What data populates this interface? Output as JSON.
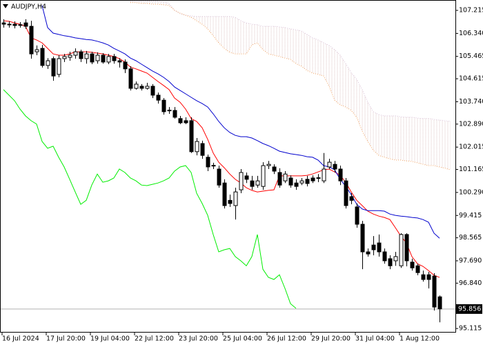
{
  "chart_data": {
    "type": "candlestick",
    "title": "AUDJPY,H4",
    "categories": [
      "16 Jul 2024",
      null,
      null,
      null,
      null,
      null,
      null,
      null,
      "17 Jul 20:00",
      null,
      null,
      null,
      null,
      null,
      null,
      null,
      "19 Jul 04:00",
      null,
      null,
      null,
      null,
      null,
      null,
      null,
      "22 Jul 12:00",
      null,
      null,
      null,
      null,
      null,
      null,
      null,
      "23 Jul 20:00",
      null,
      null,
      null,
      null,
      null,
      null,
      null,
      "25 Jul 04:00",
      null,
      null,
      null,
      null,
      null,
      null,
      null,
      "26 Jul 12:00",
      null,
      null,
      null,
      null,
      null,
      null,
      null,
      "29 Jul 20:00",
      null,
      null,
      null,
      null,
      null,
      null,
      null,
      "31 Jul 04:00",
      null,
      null,
      null,
      null,
      null,
      null,
      null,
      "1 Aug 12:00",
      null,
      null,
      null,
      null,
      null,
      null,
      null,
      null,
      null
    ],
    "ylim": [
      94.96,
      107.61
    ],
    "yticks": [
      107.215,
      {
        "value": 106.34,
        "label": "106.340"
      },
      105.465,
      104.615,
      {
        "value": 103.74,
        "label": "103.740"
      },
      {
        "value": 102.89,
        "label": "102.890"
      },
      102.015,
      101.165,
      {
        "value": 100.29,
        "label": "100.290"
      },
      99.415,
      98.565,
      {
        "value": 97.69,
        "label": "97.690"
      },
      {
        "value": 96.84,
        "label": "96.840"
      },
      95.115
    ],
    "last_price": 95.856,
    "up_color": "#ffffff",
    "down_color": "#000000",
    "open": [
      106.74,
      106.69,
      106.69,
      106.67,
      106.74,
      106.61,
      105.64,
      105.77,
      105.12,
      105.38,
      104.78,
      105.38,
      105.43,
      105.51,
      105.64,
      105.38,
      105.56,
      105.3,
      105.51,
      105.25,
      105.46,
      105.3,
      105.25,
      104.99,
      104.25,
      104.33,
      104.25,
      104.33,
      103.99,
      103.8,
      103.42,
      103.41,
      103.1,
      103.02,
      103.02,
      101.84,
      102.15,
      101.63,
      101.32,
      101.18,
      100.65,
      99.99,
      99.79,
      100.39,
      100.92,
      100.73,
      100.57,
      100.52,
      101.31,
      101.26,
      101.05,
      100.73,
      100.84,
      100.65,
      100.65,
      100.79,
      100.84,
      100.85,
      100.73,
      101.26,
      101.36,
      101.18,
      100.73,
      100.13,
      99.74,
      99.08,
      98.03,
      98.29,
      98.37,
      98.03,
      97.77,
      97.69,
      97.5,
      98.69,
      97.64,
      97.5,
      97.16,
      97.16,
      97.11,
      96.32,
      null,
      null
    ],
    "high": [
      106.88,
      106.8,
      106.8,
      106.77,
      106.88,
      106.82,
      105.88,
      105.9,
      105.4,
      105.46,
      105.51,
      105.56,
      105.64,
      105.77,
      105.72,
      105.67,
      105.64,
      105.62,
      105.59,
      105.56,
      105.56,
      105.4,
      105.35,
      105.09,
      104.51,
      104.41,
      104.46,
      104.41,
      104.09,
      103.88,
      103.54,
      103.54,
      103.2,
      103.15,
      103.15,
      102.36,
      102.26,
      101.73,
      101.42,
      101.31,
      100.79,
      100.21,
      100.47,
      101.18,
      101.05,
      100.92,
      100.92,
      101.44,
      101.49,
      101.36,
      101.21,
      101.1,
      100.94,
      100.79,
      100.84,
      100.92,
      100.94,
      100.99,
      101.79,
      101.57,
      101.49,
      101.31,
      100.84,
      100.26,
      99.87,
      99.21,
      98.16,
      98.63,
      98.69,
      98.16,
      97.9,
      98.03,
      98.74,
      98.74,
      97.77,
      97.58,
      97.32,
      97.27,
      97.22,
      96.37,
      null,
      null
    ],
    "low": [
      106.56,
      106.56,
      106.53,
      106.56,
      106.51,
      105.38,
      105.51,
      105.04,
      104.99,
      104.54,
      104.67,
      105.25,
      105.3,
      105.38,
      105.25,
      105.19,
      105.17,
      105.19,
      105.19,
      105.17,
      105.19,
      105.04,
      104.83,
      104.17,
      104.2,
      104.17,
      104.2,
      103.88,
      103.67,
      103.25,
      103.28,
      103.1,
      102.89,
      102.89,
      101.79,
      101.7,
      101.57,
      101.1,
      101.18,
      100.47,
      99.68,
      99.74,
      99.26,
      100.26,
      100.65,
      100.39,
      100.47,
      100.39,
      101.18,
      100.99,
      100.47,
      100.65,
      100.47,
      100.39,
      100.57,
      100.52,
      100.65,
      100.68,
      100.65,
      101.18,
      101.05,
      100.57,
      99.68,
      99.84,
      98.95,
      97.37,
      97.85,
      97.9,
      97.85,
      97.58,
      97.37,
      97.5,
      97.42,
      97.48,
      97.32,
      97.14,
      96.9,
      96.64,
      95.8,
      95.35,
      null,
      null
    ],
    "close": [
      106.69,
      106.67,
      106.64,
      106.66,
      106.61,
      105.56,
      105.72,
      105.12,
      105.3,
      104.72,
      105.38,
      105.46,
      105.51,
      105.64,
      105.38,
      105.56,
      105.25,
      105.51,
      105.25,
      105.46,
      105.3,
      105.25,
      104.99,
      104.25,
      104.41,
      104.25,
      104.33,
      103.99,
      103.8,
      103.36,
      103.41,
      103.15,
      102.94,
      102.94,
      101.84,
      102.23,
      101.7,
      101.26,
      101.31,
      100.57,
      99.79,
      99.87,
      100.31,
      101.05,
      100.79,
      100.52,
      100.73,
      101.31,
      101.36,
      101.1,
      100.57,
      100.99,
      100.57,
      100.52,
      100.73,
      100.63,
      100.73,
      100.84,
      101.18,
      101.44,
      101.18,
      100.73,
      99.79,
      99.99,
      99.08,
      98.03,
      97.95,
      98.11,
      98.03,
      97.69,
      97.5,
      97.85,
      98.69,
      97.69,
      97.42,
      97.24,
      96.98,
      96.98,
      95.93,
      95.86,
      null,
      null
    ],
    "cloud": {
      "color": "#dcc4c4",
      "upper": {
        "color": "#d8bfd8",
        "style": "dotted",
        "values": [
          null,
          null,
          null,
          null,
          null,
          null,
          null,
          null,
          null,
          null,
          null,
          null,
          null,
          null,
          null,
          null,
          null,
          null,
          null,
          null,
          null,
          null,
          null,
          107.56,
          107.56,
          107.56,
          107.56,
          107.56,
          107.56,
          107.53,
          107.48,
          107.22,
          107.09,
          107.03,
          107.01,
          106.98,
          106.98,
          106.98,
          106.98,
          106.98,
          106.98,
          106.98,
          106.95,
          106.82,
          106.74,
          106.69,
          106.67,
          106.61,
          106.61,
          106.61,
          106.59,
          106.56,
          106.51,
          106.48,
          106.43,
          106.3,
          106.17,
          106.09,
          105.98,
          105.88,
          105.72,
          105.51,
          105.19,
          104.85,
          104.59,
          104.2,
          103.72,
          103.36,
          103.25,
          103.2,
          103.2,
          103.2,
          103.17,
          103.15,
          103.15,
          103.12,
          103.1,
          103.1,
          103.07,
          103.04,
          103.02,
          102.99
        ]
      },
      "lower": {
        "color": "#f4a460",
        "style": "dotted",
        "values": [
          null,
          null,
          null,
          null,
          null,
          null,
          null,
          null,
          null,
          null,
          null,
          null,
          null,
          null,
          null,
          null,
          null,
          null,
          null,
          null,
          null,
          null,
          null,
          107.51,
          107.51,
          107.48,
          107.48,
          107.45,
          107.45,
          107.43,
          107.4,
          107.22,
          107.11,
          107.03,
          106.95,
          106.82,
          106.69,
          106.51,
          106.25,
          105.98,
          105.77,
          105.62,
          105.56,
          105.56,
          105.56,
          105.9,
          105.98,
          105.72,
          105.56,
          105.51,
          105.46,
          105.4,
          105.35,
          105.19,
          105.09,
          104.93,
          104.83,
          104.78,
          104.72,
          104.33,
          103.8,
          103.62,
          103.54,
          103.41,
          103.15,
          102.62,
          102.23,
          101.89,
          101.7,
          101.63,
          101.57,
          101.52,
          101.52,
          101.49,
          101.47,
          101.42,
          101.36,
          101.31,
          101.31,
          101.26,
          101.21,
          101.15
        ]
      }
    },
    "lines": [
      {
        "color": "#ff0000",
        "values": [
          106.82,
          106.8,
          106.74,
          106.69,
          106.61,
          106.17,
          106.09,
          105.98,
          105.77,
          105.56,
          105.51,
          105.51,
          105.56,
          105.64,
          105.64,
          105.64,
          105.62,
          105.59,
          105.56,
          105.51,
          105.46,
          105.38,
          105.25,
          105.06,
          104.99,
          104.91,
          104.83,
          104.67,
          104.51,
          104.36,
          104.2,
          103.88,
          103.72,
          103.46,
          103.1,
          102.99,
          102.75,
          102.31,
          101.79,
          101.44,
          101.23,
          100.99,
          100.79,
          100.65,
          100.47,
          100.37,
          100.31,
          100.34,
          100.37,
          100.39,
          100.92,
          100.92,
          100.92,
          100.92,
          100.92,
          100.94,
          100.99,
          101.07,
          101.15,
          101.18,
          101.07,
          100.94,
          100.68,
          100.31,
          99.99,
          99.79,
          99.58,
          99.47,
          99.39,
          99.34,
          99.26,
          98.95,
          98.63,
          98.37,
          97.85,
          97.58,
          97.48,
          97.32,
          97.14,
          97.06,
          null,
          null
        ]
      },
      {
        "color": "#0000cd",
        "values": [
          null,
          null,
          null,
          null,
          null,
          null,
          null,
          107.4,
          106.56,
          106.35,
          106.3,
          106.25,
          106.22,
          106.17,
          106.14,
          106.11,
          106.09,
          106.04,
          105.98,
          105.9,
          105.77,
          105.67,
          105.56,
          105.4,
          105.3,
          105.17,
          105.04,
          104.91,
          104.8,
          104.67,
          104.51,
          104.3,
          104.17,
          104.04,
          103.91,
          103.78,
          103.67,
          103.54,
          103.28,
          102.99,
          102.75,
          102.57,
          102.46,
          102.41,
          102.41,
          102.36,
          102.26,
          102.15,
          102.07,
          101.97,
          101.86,
          101.81,
          101.76,
          101.73,
          101.7,
          101.65,
          101.63,
          101.52,
          101.31,
          101.26,
          101.15,
          100.79,
          100.52,
          100.21,
          99.84,
          99.66,
          99.6,
          99.6,
          99.6,
          99.58,
          99.47,
          99.42,
          99.39,
          99.37,
          99.34,
          99.32,
          99.26,
          99.16,
          98.74,
          98.55,
          null,
          null
        ]
      },
      {
        "color": "#00ee00",
        "values": [
          104.2,
          103.99,
          103.78,
          103.46,
          103.2,
          103.02,
          102.89,
          102.23,
          101.97,
          102.05,
          101.63,
          101.26,
          100.79,
          100.31,
          99.84,
          99.99,
          100.57,
          100.99,
          100.68,
          100.73,
          100.84,
          101.18,
          101.05,
          100.84,
          100.73,
          100.57,
          100.55,
          100.6,
          100.65,
          100.73,
          100.84,
          101.1,
          101.26,
          101.31,
          101.05,
          100.26,
          99.87,
          99.42,
          98.69,
          98.03,
          98.11,
          98.16,
          97.85,
          97.69,
          97.5,
          97.85,
          98.69,
          97.37,
          97.06,
          96.98,
          97.16,
          96.64,
          96.06,
          95.88,
          null,
          null,
          null,
          null,
          null,
          null,
          null,
          null,
          null,
          null,
          null,
          null,
          null,
          null,
          null,
          null,
          null,
          null,
          null,
          null,
          null,
          null,
          null,
          null,
          null,
          null,
          null,
          null
        ]
      }
    ]
  }
}
